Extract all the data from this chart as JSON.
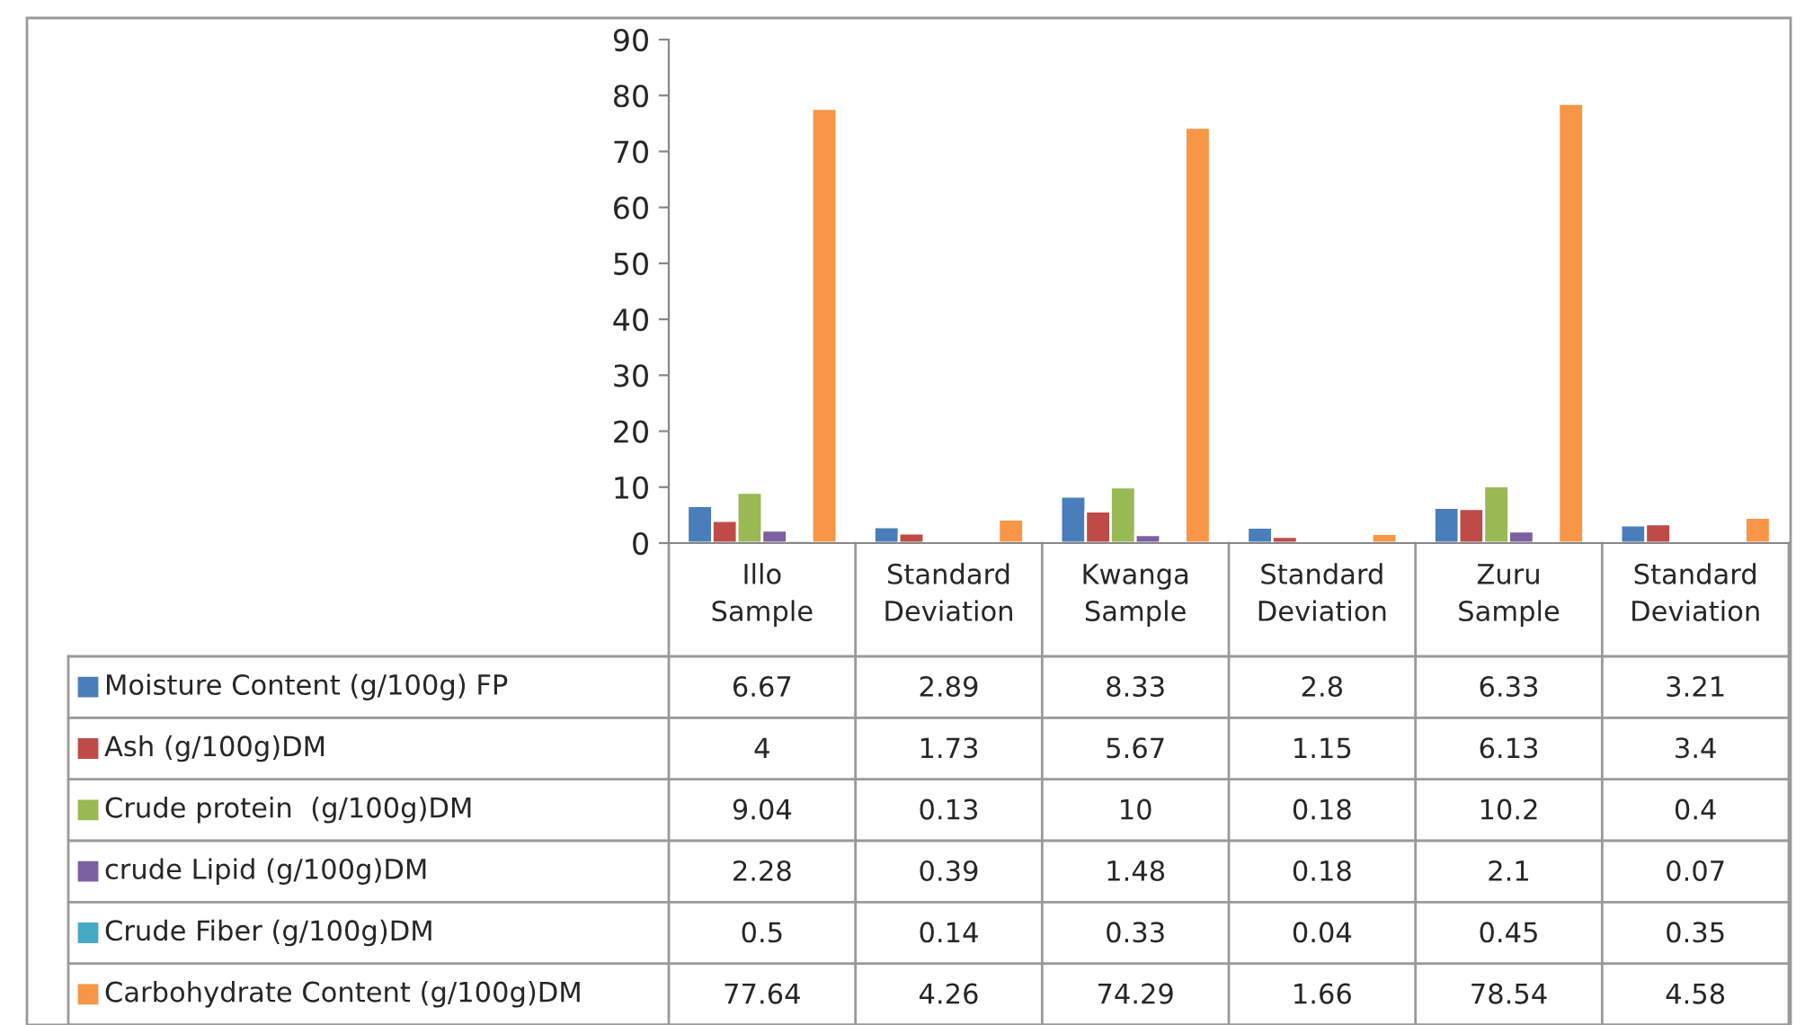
{
  "chart_data": {
    "type": "bar",
    "categories": [
      "Illo\nSample",
      "Standard\nDeviation",
      "Kwanga\nSample",
      "Standard\nDeviation",
      "Zuru\nSample",
      "Standard\nDeviation"
    ],
    "series": [
      {
        "name": "Moisture Content (g/100g) FP",
        "color": "#4a7ebb",
        "values": [
          6.67,
          2.89,
          8.33,
          2.8,
          6.33,
          3.21
        ]
      },
      {
        "name": "Ash (g/100g)DM",
        "color": "#be4b48",
        "values": [
          4,
          1.73,
          5.67,
          1.15,
          6.13,
          3.4
        ]
      },
      {
        "name": "Crude protein  (g/100g)DM",
        "color": "#98b954",
        "values": [
          9.04,
          0.13,
          10,
          0.18,
          10.2,
          0.4
        ]
      },
      {
        "name": "crude Lipid (g/100g)DM",
        "color": "#7d60a0",
        "values": [
          2.28,
          0.39,
          1.48,
          0.18,
          2.1,
          0.07
        ]
      },
      {
        "name": "Crude Fiber (g/100g)DM",
        "color": "#46aac5",
        "values": [
          0.5,
          0.14,
          0.33,
          0.04,
          0.45,
          0.35
        ]
      },
      {
        "name": "Carbohydrate Content (g/100g)DM",
        "color": "#f79646",
        "values": [
          77.64,
          4.26,
          74.29,
          1.66,
          78.54,
          4.58
        ]
      }
    ],
    "ylim": [
      0,
      90
    ],
    "yticks": [
      0,
      10,
      20,
      30,
      40,
      50,
      60,
      70,
      80,
      90
    ],
    "grid": false,
    "legend": "bottom left",
    "data_labels": true
  }
}
